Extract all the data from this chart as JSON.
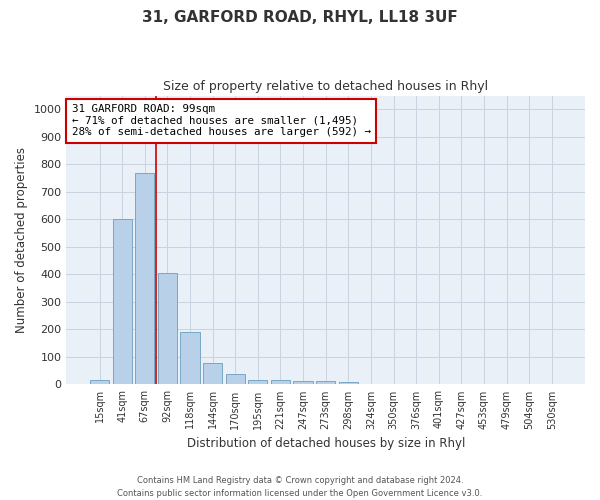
{
  "title": "31, GARFORD ROAD, RHYL, LL18 3UF",
  "subtitle": "Size of property relative to detached houses in Rhyl",
  "xlabel": "Distribution of detached houses by size in Rhyl",
  "ylabel": "Number of detached properties",
  "bar_color": "#b8d0e8",
  "bar_edge_color": "#6a9fc0",
  "background_color": "#ffffff",
  "plot_bg_color": "#eaf0f8",
  "grid_color": "#c8d4e0",
  "categories": [
    "15sqm",
    "41sqm",
    "67sqm",
    "92sqm",
    "118sqm",
    "144sqm",
    "170sqm",
    "195sqm",
    "221sqm",
    "247sqm",
    "273sqm",
    "298sqm",
    "324sqm",
    "350sqm",
    "376sqm",
    "401sqm",
    "427sqm",
    "453sqm",
    "479sqm",
    "504sqm",
    "530sqm"
  ],
  "values": [
    15,
    600,
    770,
    405,
    190,
    77,
    37,
    17,
    15,
    11,
    14,
    8,
    0,
    0,
    0,
    0,
    0,
    0,
    0,
    0,
    0
  ],
  "ylim": [
    0,
    1050
  ],
  "yticks": [
    0,
    100,
    200,
    300,
    400,
    500,
    600,
    700,
    800,
    900,
    1000
  ],
  "red_line_x": 2.5,
  "annotation_text": "31 GARFORD ROAD: 99sqm\n← 71% of detached houses are smaller (1,495)\n28% of semi-detached houses are larger (592) →",
  "annotation_box_color": "#ffffff",
  "annotation_border_color": "#cc0000",
  "footer_line1": "Contains HM Land Registry data © Crown copyright and database right 2024.",
  "footer_line2": "Contains public sector information licensed under the Open Government Licence v3.0."
}
